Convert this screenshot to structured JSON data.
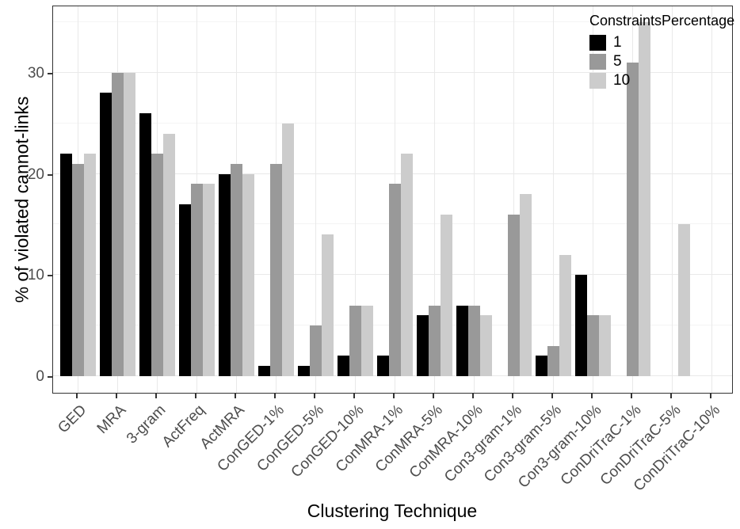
{
  "chart_data": {
    "type": "bar",
    "title": "",
    "xlabel": "Clustering Technique",
    "ylabel": "% of violated cannot-links",
    "legend_title": "ConstraintsPercentage",
    "legend_position": "top-right-inside",
    "categories": [
      "GED",
      "MRA",
      "3-gram",
      "ActFreq",
      "ActMRA",
      "ConGED-1%",
      "ConGED-5%",
      "ConGED-10%",
      "ConMRA-1%",
      "ConMRA-5%",
      "ConMRA-10%",
      "Con3-gram-1%",
      "Con3-gram-5%",
      "Con3-gram-10%",
      "ConDriTraC-1%",
      "ConDriTraC-5%",
      "ConDriTraC-10%"
    ],
    "series": [
      {
        "name": "1",
        "color": "#000000",
        "values": [
          22,
          28,
          26,
          17,
          20,
          1,
          1,
          2,
          2,
          6,
          7,
          0,
          2,
          10,
          0,
          0,
          0
        ]
      },
      {
        "name": "5",
        "color": "#999999",
        "values": [
          21,
          30,
          22,
          19,
          21,
          21,
          5,
          7,
          19,
          7,
          7,
          16,
          3,
          6,
          31,
          0,
          0
        ]
      },
      {
        "name": "10",
        "color": "#cccccc",
        "values": [
          22,
          30,
          24,
          19,
          20,
          25,
          14,
          7,
          22,
          16,
          6,
          18,
          12,
          6,
          35,
          15,
          0
        ]
      }
    ],
    "ylim": [
      0,
      35
    ],
    "yticks": [
      0,
      10,
      20,
      30
    ],
    "yticks_minor": [
      5,
      15,
      25,
      35
    ],
    "grid": "on"
  },
  "colors": {
    "background": "#ffffff",
    "panel_border": "#333333",
    "grid_major": "#e9e9e9",
    "grid_minor": "#f4f4f4",
    "tick_label": "#4d4d4d",
    "axis_title": "#000000"
  }
}
